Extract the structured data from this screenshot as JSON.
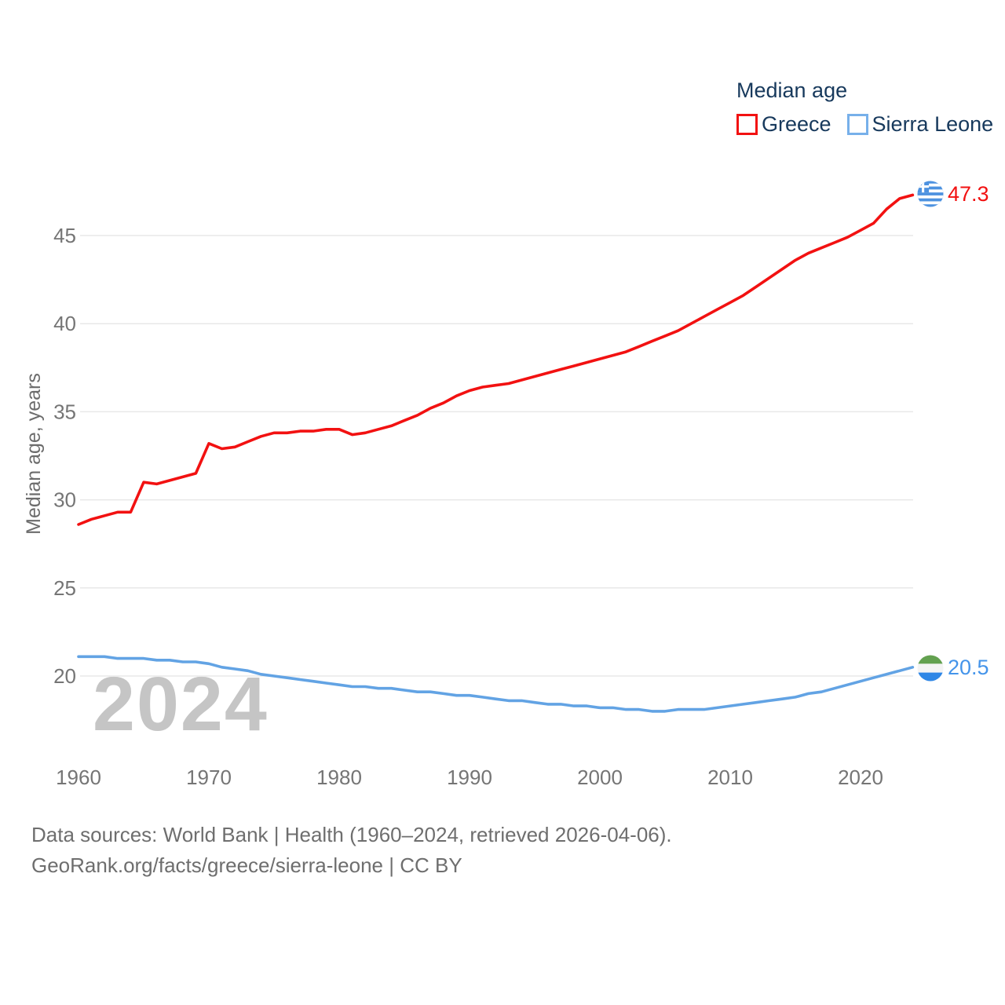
{
  "legend": {
    "title": "Median age",
    "items": [
      {
        "label": "Greece",
        "color": "#f21111"
      },
      {
        "label": "Sierra Leone",
        "color": "#77b0ea"
      }
    ]
  },
  "watermark": "2024",
  "y_axis_title": "Median age, years",
  "end_labels": {
    "greece": {
      "value": "47.3",
      "color": "#f21111"
    },
    "sierra_leone": {
      "value": "20.5",
      "color": "#4494ea"
    }
  },
  "flags": {
    "greece": {
      "blue": "#4d92e0",
      "white": "#ffffff"
    },
    "sierra_leone": {
      "green": "#63a150",
      "white": "#f4f4f4",
      "blue": "#2f87e6"
    }
  },
  "footer": {
    "line1": "Data sources: World Bank | Health (1960–2024, retrieved 2026-04-06).",
    "line2": "GeoRank.org/facts/greece/sierra-leone | CC BY"
  },
  "chart_data": {
    "type": "line",
    "title": "Median age",
    "xlabel": "",
    "ylabel": "Median age, years",
    "ylim": [
      17.5,
      48
    ],
    "yticks": [
      20,
      25,
      30,
      35,
      40,
      45
    ],
    "xticks": [
      1960,
      1970,
      1980,
      1990,
      2000,
      2010,
      2020
    ],
    "grid": "horizontal",
    "legend_position": "top-right",
    "x": [
      1960,
      1961,
      1962,
      1963,
      1964,
      1965,
      1966,
      1967,
      1968,
      1969,
      1970,
      1971,
      1972,
      1973,
      1974,
      1975,
      1976,
      1977,
      1978,
      1979,
      1980,
      1981,
      1982,
      1983,
      1984,
      1985,
      1986,
      1987,
      1988,
      1989,
      1990,
      1991,
      1992,
      1993,
      1994,
      1995,
      1996,
      1997,
      1998,
      1999,
      2000,
      2001,
      2002,
      2003,
      2004,
      2005,
      2006,
      2007,
      2008,
      2009,
      2010,
      2011,
      2012,
      2013,
      2014,
      2015,
      2016,
      2017,
      2018,
      2019,
      2020,
      2021,
      2022,
      2023,
      2024
    ],
    "series": [
      {
        "name": "Greece",
        "color": "#f21111",
        "end_label": "47.3",
        "values": [
          28.6,
          28.9,
          29.1,
          29.3,
          29.3,
          31.0,
          30.9,
          31.1,
          31.3,
          31.5,
          33.2,
          32.9,
          33.0,
          33.3,
          33.6,
          33.8,
          33.8,
          33.9,
          33.9,
          34.0,
          34.0,
          33.7,
          33.8,
          34.0,
          34.2,
          34.5,
          34.8,
          35.2,
          35.5,
          35.9,
          36.2,
          36.4,
          36.5,
          36.6,
          36.8,
          37.0,
          37.2,
          37.4,
          37.6,
          37.8,
          38.0,
          38.2,
          38.4,
          38.7,
          39.0,
          39.3,
          39.6,
          40.0,
          40.4,
          40.8,
          41.2,
          41.6,
          42.1,
          42.6,
          43.1,
          43.6,
          44.0,
          44.3,
          44.6,
          44.9,
          45.3,
          45.7,
          46.5,
          47.1,
          47.3
        ]
      },
      {
        "name": "Sierra Leone",
        "color": "#62a3e4",
        "end_label": "20.5",
        "values": [
          21.1,
          21.1,
          21.1,
          21.0,
          21.0,
          21.0,
          20.9,
          20.9,
          20.8,
          20.8,
          20.7,
          20.5,
          20.4,
          20.3,
          20.1,
          20.0,
          19.9,
          19.8,
          19.7,
          19.6,
          19.5,
          19.4,
          19.4,
          19.3,
          19.3,
          19.2,
          19.1,
          19.1,
          19.0,
          18.9,
          18.9,
          18.8,
          18.7,
          18.6,
          18.6,
          18.5,
          18.4,
          18.4,
          18.3,
          18.3,
          18.2,
          18.2,
          18.1,
          18.1,
          18.0,
          18.0,
          18.1,
          18.1,
          18.1,
          18.2,
          18.3,
          18.4,
          18.5,
          18.6,
          18.7,
          18.8,
          19.0,
          19.1,
          19.3,
          19.5,
          19.7,
          19.9,
          20.1,
          20.3,
          20.5
        ]
      }
    ]
  },
  "style": {
    "gridline_color": "#e8e8e8",
    "tick_label_color": "#757575"
  }
}
